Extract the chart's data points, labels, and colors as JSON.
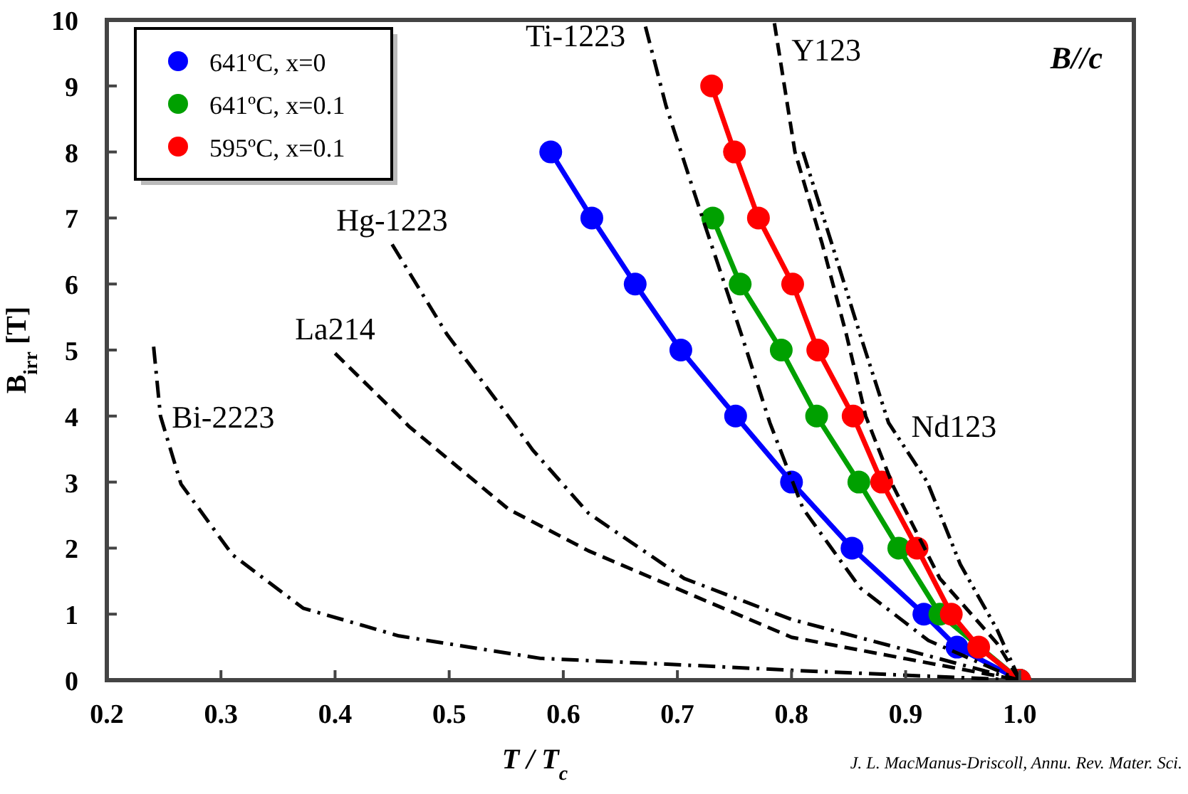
{
  "chart_data": {
    "type": "line",
    "xlabel": "T / T$_{c}$",
    "ylabel": "B$_{irr}$ [T]",
    "xlim": [
      0.2,
      1.1
    ],
    "ylim": [
      0,
      10
    ],
    "xticks": [
      {
        "value": 0.2,
        "label": "0.2"
      },
      {
        "value": 0.3,
        "label": "0.3"
      },
      {
        "value": 0.4,
        "label": "0.4"
      },
      {
        "value": 0.5,
        "label": "0.5"
      },
      {
        "value": 0.6,
        "label": "0.6"
      },
      {
        "value": 0.7,
        "label": "0.7"
      },
      {
        "value": 0.8,
        "label": "0.8"
      },
      {
        "value": 0.9,
        "label": "0.9"
      },
      {
        "value": 1.0,
        "label": "1.0"
      }
    ],
    "yticks": [
      0,
      1,
      2,
      3,
      4,
      5,
      6,
      7,
      8,
      9,
      10
    ],
    "grid": false,
    "legend": "top left",
    "marker": "circle",
    "annotations": [
      "B//c",
      "J. L. MacManus-Driscoll, Annu. Rev. Mater. Sci."
    ],
    "series": [
      {
        "name": "641ºC, x=0",
        "color": "#0000ff",
        "x": [
          0.589,
          0.625,
          0.663,
          0.703,
          0.751,
          0.8,
          0.853,
          0.916,
          0.945,
          0.97,
          1.0
        ],
        "values": [
          8,
          7,
          6,
          5,
          4,
          3,
          2,
          1,
          0.5,
          null,
          0
        ]
      },
      {
        "name": "641ºC, x=0.1",
        "color": "#00a000",
        "x": [
          0.731,
          0.755,
          0.791,
          0.822,
          0.859,
          0.894,
          0.93,
          0.955,
          1.0
        ],
        "values": [
          7,
          6,
          5,
          4,
          3,
          2,
          1,
          null,
          0
        ]
      },
      {
        "name": "595ºC, x=0.1",
        "color": "#ff0000",
        "x": [
          0.73,
          0.75,
          0.771,
          0.801,
          0.823,
          0.854,
          0.879,
          0.91,
          0.94,
          0.964,
          1.0
        ],
        "values": [
          9,
          8,
          7,
          6,
          5,
          4,
          3,
          2,
          1,
          0.5,
          0
        ]
      },
      {
        "name": "Ti-1223",
        "color": "#000000",
        "marker": "none",
        "line_style": "dashdot",
        "x": [
          0.672,
          0.69,
          0.722,
          0.756,
          0.781,
          0.81,
          0.86,
          0.92,
          1.0
        ],
        "values": [
          9.9,
          8.7,
          7.0,
          5.24,
          3.9,
          2.6,
          1.4,
          0.6,
          0
        ]
      },
      {
        "name": "Y123",
        "color": "#000000",
        "marker": "none",
        "line_style": "dashed",
        "x": [
          0.785,
          0.803,
          0.827,
          0.848,
          0.865,
          0.889,
          0.93,
          0.98,
          1.0
        ],
        "values": [
          9.95,
          8.0,
          6.6,
          5.24,
          4.0,
          2.94,
          1.54,
          0.56,
          0
        ]
      },
      {
        "name": "Hg-1223",
        "color": "#000000",
        "marker": "none",
        "line_style": "dashdot",
        "x": [
          0.45,
          0.498,
          0.556,
          0.573,
          0.622,
          0.706,
          0.8,
          1.0
        ],
        "values": [
          6.6,
          5.24,
          3.9,
          3.49,
          2.53,
          1.54,
          0.92,
          0
        ]
      },
      {
        "name": "La214",
        "color": "#000000",
        "marker": "none",
        "line_style": "dashed",
        "x": [
          0.4,
          0.456,
          0.465,
          0.552,
          0.622,
          0.706,
          0.8,
          1.0
        ],
        "values": [
          4.95,
          4.0,
          3.84,
          2.59,
          1.96,
          1.34,
          0.65,
          0
        ]
      },
      {
        "name": "Bi-2223",
        "color": "#000000",
        "marker": "none",
        "line_style": "dashdot",
        "x": [
          0.241,
          0.247,
          0.265,
          0.31,
          0.372,
          0.456,
          0.58,
          0.706,
          0.8,
          1.0
        ],
        "values": [
          5.05,
          4.0,
          2.97,
          1.9,
          1.09,
          0.67,
          0.33,
          0.23,
          0.15,
          0
        ]
      },
      {
        "name": "Nd123",
        "color": "#000000",
        "marker": "none",
        "line_style": "dashdotdot",
        "x": [
          0.81,
          0.84,
          0.86,
          0.885,
          0.919,
          0.948,
          0.98,
          1.0
        ],
        "values": [
          8.0,
          6.35,
          5.24,
          3.9,
          3.0,
          1.75,
          0.77,
          0
        ]
      }
    ]
  }
}
